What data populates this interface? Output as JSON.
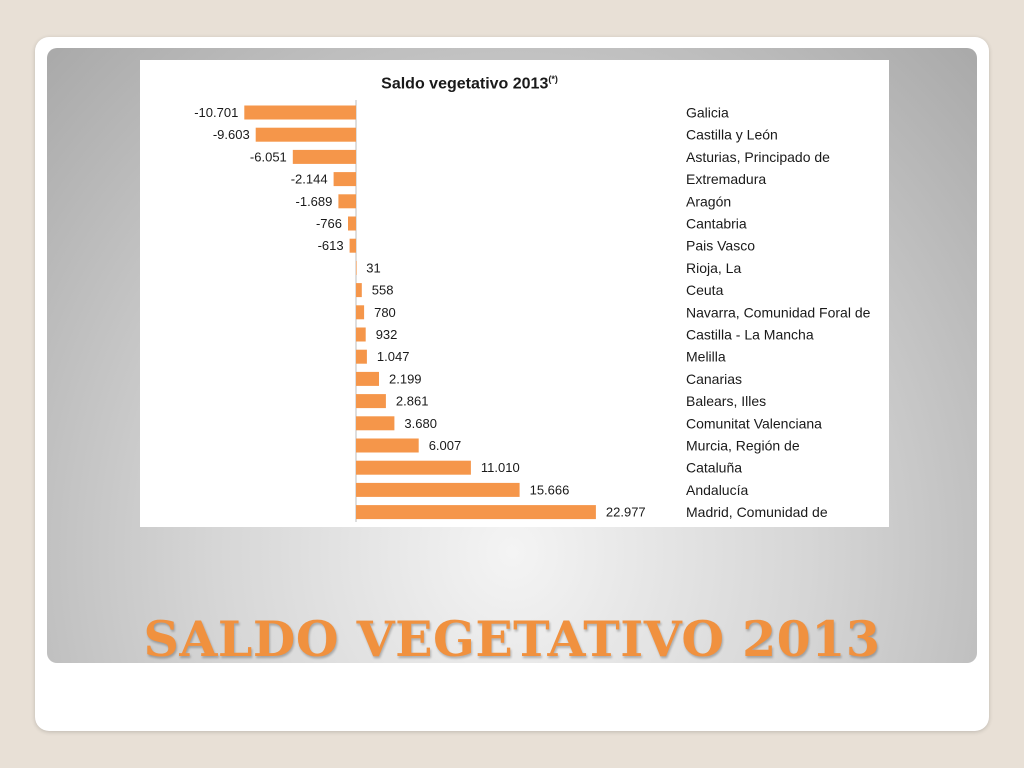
{
  "slide": {
    "title": "SALDO VEGETATIVO 2013"
  },
  "chart_data": {
    "type": "bar",
    "orientation": "horizontal",
    "title": "Saldo vegetativo 2013",
    "title_note": "(*)",
    "bar_color": "#f5964a",
    "categories": [
      "Galicia",
      "Castilla y León",
      "Asturias, Principado de",
      "Extremadura",
      "Aragón",
      "Cantabria",
      "Pais Vasco",
      "Rioja, La",
      "Ceuta",
      "Navarra, Comunidad Foral de",
      "Castilla - La Mancha",
      "Melilla",
      "Canarias",
      "Balears, Illes",
      "Comunitat Valenciana",
      "Murcia, Región de",
      "Cataluña",
      "Andalucía",
      "Madrid, Comunidad de"
    ],
    "values": [
      -10701,
      -9603,
      -6051,
      -2144,
      -1689,
      -766,
      -613,
      31,
      558,
      780,
      932,
      1047,
      2199,
      2861,
      3680,
      6007,
      11010,
      15666,
      22977
    ],
    "value_labels": [
      "-10.701",
      "-9.603",
      "-6.051",
      "-2.144",
      "-1.689",
      "-766",
      "-613",
      "31",
      "558",
      "780",
      "932",
      "1.047",
      "2.199",
      "2.861",
      "3.680",
      "6.007",
      "11.010",
      "15.666",
      "22.977"
    ],
    "xlim": [
      -11000,
      23000
    ]
  }
}
